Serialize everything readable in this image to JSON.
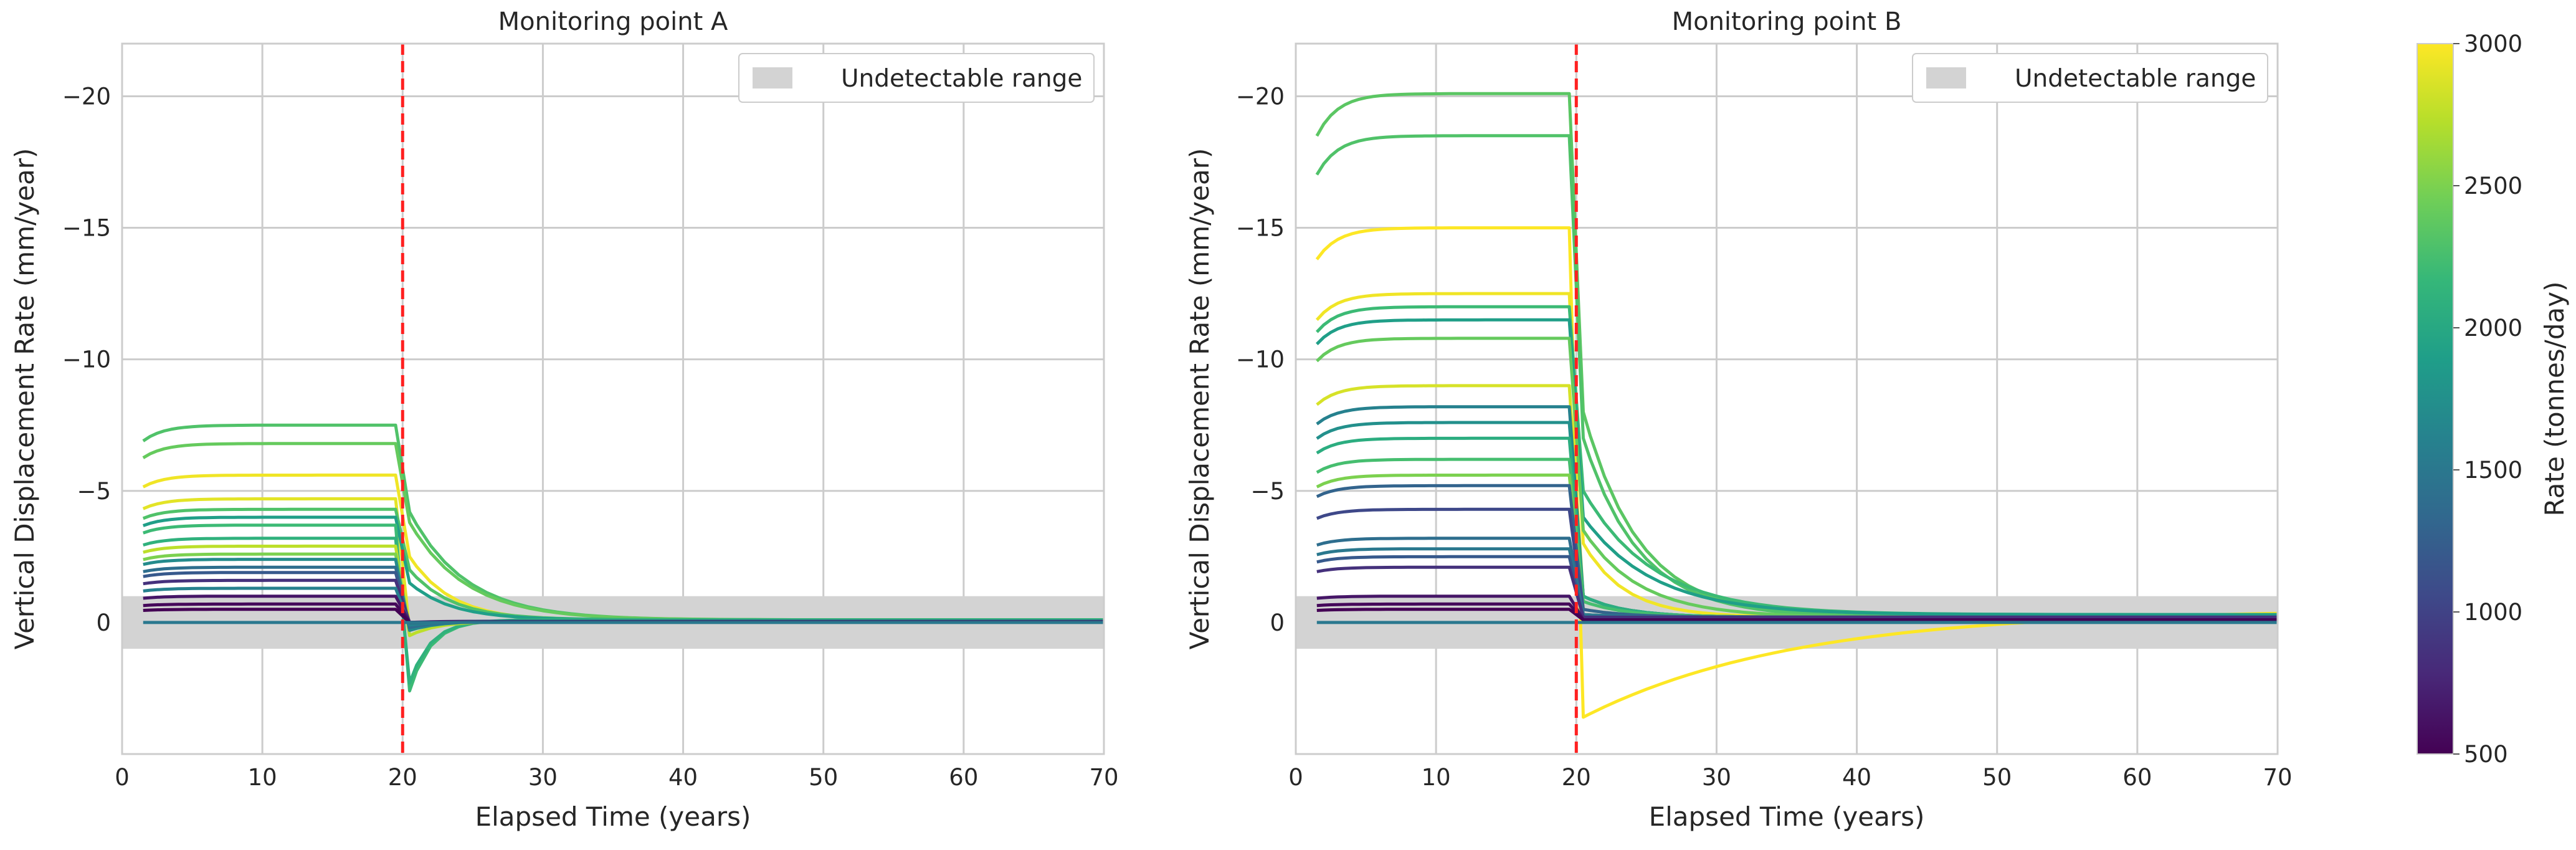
{
  "chart_data": [
    {
      "type": "line",
      "title": "Monitoring point A",
      "xlabel": "Elapsed Time (years)",
      "ylabel": "Vertical Displacement Rate (mm/year)",
      "xlim": [
        0,
        70
      ],
      "ylim": [
        5,
        -22
      ],
      "y_axis_inverted": true,
      "grid": true,
      "xticks": [
        0,
        10,
        20,
        30,
        40,
        50,
        60,
        70
      ],
      "xtick_labels": [
        "0",
        "10",
        "20",
        "30",
        "40",
        "50",
        "60",
        "70"
      ],
      "yticks": [
        0,
        -5,
        -10,
        -15,
        -20
      ],
      "ytick_labels": [
        "0",
        "−5",
        "−10",
        "−15",
        "−20"
      ],
      "shaded_band": {
        "y_range": [
          -1,
          1
        ],
        "label": "Undetectable range",
        "color": "#d3d3d3"
      },
      "vertical_line": {
        "x": 20,
        "style": "dashed",
        "color": "#ff2020"
      },
      "legend_position": "top-right",
      "color_by": "rate",
      "series": [
        {
          "rate": 2300,
          "pre": -7.5,
          "drop_end": -4.2,
          "tail": -0.1,
          "tau": 4
        },
        {
          "rate": 2400,
          "pre": -6.8,
          "drop_end": -3.8,
          "tail": -0.1,
          "tau": 4
        },
        {
          "rate": 2950,
          "pre": -5.6,
          "drop_end": -2.5,
          "tail": -0.05,
          "tau": 3
        },
        {
          "rate": 2900,
          "pre": -4.7,
          "drop_end": 0.3,
          "tail": -0.05,
          "tau": 2
        },
        {
          "rate": 2300,
          "pre": -4.3,
          "drop_end": -2.0,
          "tail": -0.1,
          "tau": 3
        },
        {
          "rate": 1900,
          "pre": -4.0,
          "drop_end": -1.5,
          "tail": -0.1,
          "tau": 3
        },
        {
          "rate": 2200,
          "pre": -3.7,
          "drop_end": 2.6,
          "tail": -0.1,
          "tau": 1.5
        },
        {
          "rate": 2100,
          "pre": -3.2,
          "drop_end": 2.3,
          "tail": -0.1,
          "tau": 1.5
        },
        {
          "rate": 2750,
          "pre": -2.9,
          "drop_end": 0.5,
          "tail": -0.05,
          "tau": 2
        },
        {
          "rate": 2500,
          "pre": -2.6,
          "drop_end": 0.2,
          "tail": -0.05,
          "tau": 2
        },
        {
          "rate": 1700,
          "pre": -2.4,
          "drop_end": 0.3,
          "tail": -0.05,
          "tau": 2
        },
        {
          "rate": 1400,
          "pre": -2.1,
          "drop_end": 0.2,
          "tail": -0.05,
          "tau": 2
        },
        {
          "rate": 1200,
          "pre": -1.9,
          "drop_end": 0.1,
          "tail": -0.05,
          "tau": 2
        },
        {
          "rate": 850,
          "pre": -1.6,
          "drop_end": 0.0,
          "tail": -0.05,
          "tau": 2
        },
        {
          "rate": 1600,
          "pre": -1.3,
          "drop_end": 0.1,
          "tail": -0.05,
          "tau": 2
        },
        {
          "rate": 650,
          "pre": -1.0,
          "drop_end": 0.0,
          "tail": -0.02,
          "tau": 2
        },
        {
          "rate": 550,
          "pre": -0.7,
          "drop_end": 0.0,
          "tail": -0.02,
          "tau": 2
        },
        {
          "rate": 500,
          "pre": -0.5,
          "drop_end": 0.0,
          "tail": -0.02,
          "tau": 2
        },
        {
          "rate": 1500,
          "pre": 0.0,
          "drop_end": 0.0,
          "tail": 0.0,
          "tau": 2
        }
      ]
    },
    {
      "type": "line",
      "title": "Monitoring point B",
      "xlabel": "Elapsed Time (years)",
      "ylabel": "Vertical Displacement Rate (mm/year)",
      "xlim": [
        0,
        70
      ],
      "ylim": [
        5,
        -22
      ],
      "y_axis_inverted": true,
      "grid": true,
      "xticks": [
        0,
        10,
        20,
        30,
        40,
        50,
        60,
        70
      ],
      "xtick_labels": [
        "0",
        "10",
        "20",
        "30",
        "40",
        "50",
        "60",
        "70"
      ],
      "yticks": [
        0,
        -5,
        -10,
        -15,
        -20
      ],
      "ytick_labels": [
        "0",
        "−5",
        "−10",
        "−15",
        "−20"
      ],
      "shaded_band": {
        "y_range": [
          -1,
          1
        ],
        "label": "Undetectable range",
        "color": "#d3d3d3"
      },
      "vertical_line": {
        "x": 20,
        "style": "dashed",
        "color": "#ff2020"
      },
      "legend_position": "top-right",
      "color_by": "rate",
      "series": [
        {
          "rate": 2350,
          "pre": -20.1,
          "drop_end": -8.0,
          "tail": -0.2,
          "tau": 4
        },
        {
          "rate": 2300,
          "pre": -18.5,
          "drop_end": -7.0,
          "tail": -0.2,
          "tau": 4
        },
        {
          "rate": 3000,
          "pre": -15.0,
          "drop_end": 3.6,
          "tail": -0.5,
          "tau": 15
        },
        {
          "rate": 2950,
          "pre": -12.5,
          "drop_end": -3.0,
          "tail": -0.2,
          "tau": 3
        },
        {
          "rate": 2200,
          "pre": -12.0,
          "drop_end": -5.0,
          "tail": -0.3,
          "tau": 5
        },
        {
          "rate": 1900,
          "pre": -11.5,
          "drop_end": -4.0,
          "tail": -0.3,
          "tau": 5
        },
        {
          "rate": 2400,
          "pre": -10.8,
          "drop_end": -3.5,
          "tail": -0.2,
          "tau": 4
        },
        {
          "rate": 2850,
          "pre": -9.0,
          "drop_end": -1.0,
          "tail": -0.2,
          "tau": 3
        },
        {
          "rate": 1600,
          "pre": -8.2,
          "drop_end": -1.0,
          "tail": -0.2,
          "tau": 3
        },
        {
          "rate": 1750,
          "pre": -7.6,
          "drop_end": -1.0,
          "tail": -0.2,
          "tau": 3
        },
        {
          "rate": 2050,
          "pre": -7.0,
          "drop_end": -1.0,
          "tail": -0.2,
          "tau": 3
        },
        {
          "rate": 2250,
          "pre": -6.2,
          "drop_end": -0.8,
          "tail": -0.2,
          "tau": 3
        },
        {
          "rate": 2500,
          "pre": -5.6,
          "drop_end": -0.5,
          "tail": -0.2,
          "tau": 3
        },
        {
          "rate": 1300,
          "pre": -5.2,
          "drop_end": -0.5,
          "tail": -0.2,
          "tau": 3
        },
        {
          "rate": 1050,
          "pre": -4.3,
          "drop_end": -0.3,
          "tail": -0.2,
          "tau": 3
        },
        {
          "rate": 1400,
          "pre": -3.2,
          "drop_end": -0.3,
          "tail": -0.2,
          "tau": 3
        },
        {
          "rate": 1500,
          "pre": -2.8,
          "drop_end": -0.3,
          "tail": -0.2,
          "tau": 3
        },
        {
          "rate": 1200,
          "pre": -2.5,
          "drop_end": -0.2,
          "tail": -0.2,
          "tau": 3
        },
        {
          "rate": 850,
          "pre": -2.1,
          "drop_end": -0.2,
          "tail": -0.2,
          "tau": 3
        },
        {
          "rate": 650,
          "pre": -1.0,
          "drop_end": -0.1,
          "tail": -0.1,
          "tau": 3
        },
        {
          "rate": 550,
          "pre": -0.7,
          "drop_end": -0.1,
          "tail": -0.1,
          "tau": 3
        },
        {
          "rate": 500,
          "pre": -0.5,
          "drop_end": -0.1,
          "tail": -0.1,
          "tau": 3
        },
        {
          "rate": 1500,
          "pre": 0.0,
          "drop_end": 0.0,
          "tail": 0.0,
          "tau": 3
        }
      ]
    }
  ],
  "colorbar": {
    "label": "Rate (tonnes/day)",
    "min": 500,
    "max": 3000,
    "ticks": [
      500,
      1000,
      1500,
      2000,
      2500,
      3000
    ],
    "tick_labels": [
      "500",
      "1000",
      "1500",
      "2000",
      "2500",
      "3000"
    ],
    "colormap": "viridis",
    "stops": [
      "#440154",
      "#482878",
      "#3e4989",
      "#31688e",
      "#26828e",
      "#1f9e89",
      "#35b779",
      "#6ece58",
      "#b5de2b",
      "#fde725"
    ]
  },
  "colors": {
    "grid": "#cccccc",
    "spine": "#cccccc",
    "band": "#d3d3d3",
    "stop_line": "#ff2020"
  }
}
